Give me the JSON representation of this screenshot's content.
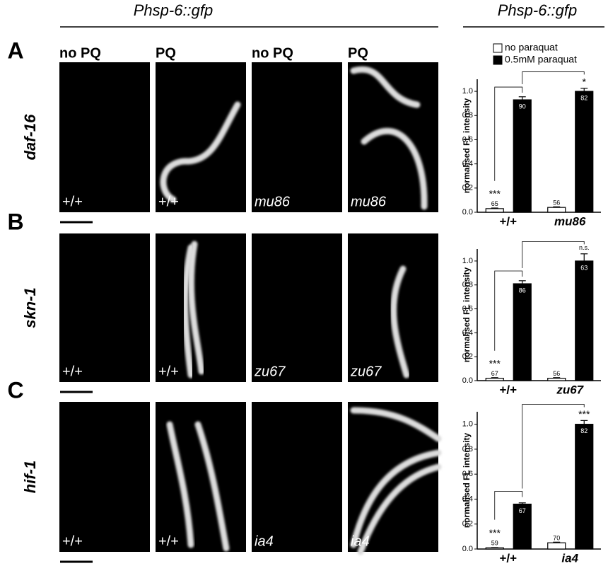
{
  "header": {
    "left_title": "Phsp-6::gfp",
    "right_title": "Phsp-6::gfp"
  },
  "column_labels": [
    "no PQ",
    "PQ",
    "no PQ",
    "PQ"
  ],
  "panels": [
    {
      "label": "A",
      "gene": "daf-16",
      "image_labels": [
        "+/+",
        "+/+",
        "mu86",
        "mu86"
      ]
    },
    {
      "label": "B",
      "gene": "skn-1",
      "image_labels": [
        "+/+",
        "+/+",
        "zu67",
        "zu67"
      ]
    },
    {
      "label": "C",
      "gene": "hif-1",
      "image_labels": [
        "+/+",
        "+/+",
        "ia4",
        "ia4"
      ]
    }
  ],
  "chart_data": [
    {
      "type": "bar",
      "y_label": "normalised FL intensity",
      "categories": [
        "+/+",
        "mu86"
      ],
      "legend": "top",
      "ylim": [
        0,
        1.1
      ],
      "yticks": [
        {
          "value": 0,
          "label": "0.0"
        },
        {
          "value": 0.2,
          "label": "0.2"
        },
        {
          "value": 0.4,
          "label": "0.4"
        },
        {
          "value": 0.6,
          "label": "0.6"
        },
        {
          "value": 0.8,
          "label": "0.8"
        },
        {
          "value": 1,
          "label": "1.0"
        }
      ],
      "series": [
        {
          "name": "no paraquat",
          "color": "#ffffff",
          "values": [
            0.03,
            0.04
          ],
          "errors": [
            0.005,
            0.005
          ],
          "n": [
            65,
            56
          ],
          "significance": [
            "***",
            null
          ]
        },
        {
          "name": "0.5mM paraquat",
          "color": "#000000",
          "values": [
            0.93,
            1.0
          ],
          "errors": [
            0.025,
            0.025
          ],
          "n": [
            90,
            82
          ],
          "significance": [
            null,
            "*"
          ]
        }
      ]
    },
    {
      "type": "bar",
      "y_label": "normalised FL intensity",
      "categories": [
        "+/+",
        "zu67"
      ],
      "ylim": [
        0,
        1.1
      ],
      "yticks": [
        {
          "value": 0,
          "label": "0.0"
        },
        {
          "value": 0.2,
          "label": "0.2"
        },
        {
          "value": 0.4,
          "label": "0.4"
        },
        {
          "value": 0.6,
          "label": "0.6"
        },
        {
          "value": 0.8,
          "label": "0.8"
        },
        {
          "value": 1,
          "label": "1.0"
        }
      ],
      "series": [
        {
          "color": "#ffffff",
          "values": [
            0.02,
            0.02
          ],
          "errors": [
            0.005,
            0.005
          ],
          "n": [
            67,
            56
          ],
          "significance": [
            "***",
            null
          ]
        },
        {
          "color": "#000000",
          "values": [
            0.81,
            1.0
          ],
          "errors": [
            0.025,
            0.06
          ],
          "n": [
            86,
            63
          ],
          "significance": [
            null,
            "n.s."
          ]
        }
      ]
    },
    {
      "type": "bar",
      "y_label": "normalised FL intensity",
      "categories": [
        "+/+",
        "ia4"
      ],
      "ylim": [
        0,
        1.1
      ],
      "yticks": [
        {
          "value": 0,
          "label": "0.0"
        },
        {
          "value": 0.2,
          "label": "0.2"
        },
        {
          "value": 0.4,
          "label": "0.4"
        },
        {
          "value": 0.6,
          "label": "0.6"
        },
        {
          "value": 0.8,
          "label": "0.8"
        },
        {
          "value": 1,
          "label": "1.0"
        }
      ],
      "series": [
        {
          "color": "#ffffff",
          "values": [
            0.01,
            0.05
          ],
          "errors": [
            0.002,
            0.005
          ],
          "n": [
            59,
            70
          ],
          "significance": [
            "***",
            null
          ]
        },
        {
          "color": "#000000",
          "values": [
            0.36,
            1.0
          ],
          "errors": [
            0.01,
            0.03
          ],
          "n": [
            67,
            82
          ],
          "significance": [
            null,
            "***"
          ]
        }
      ]
    }
  ]
}
